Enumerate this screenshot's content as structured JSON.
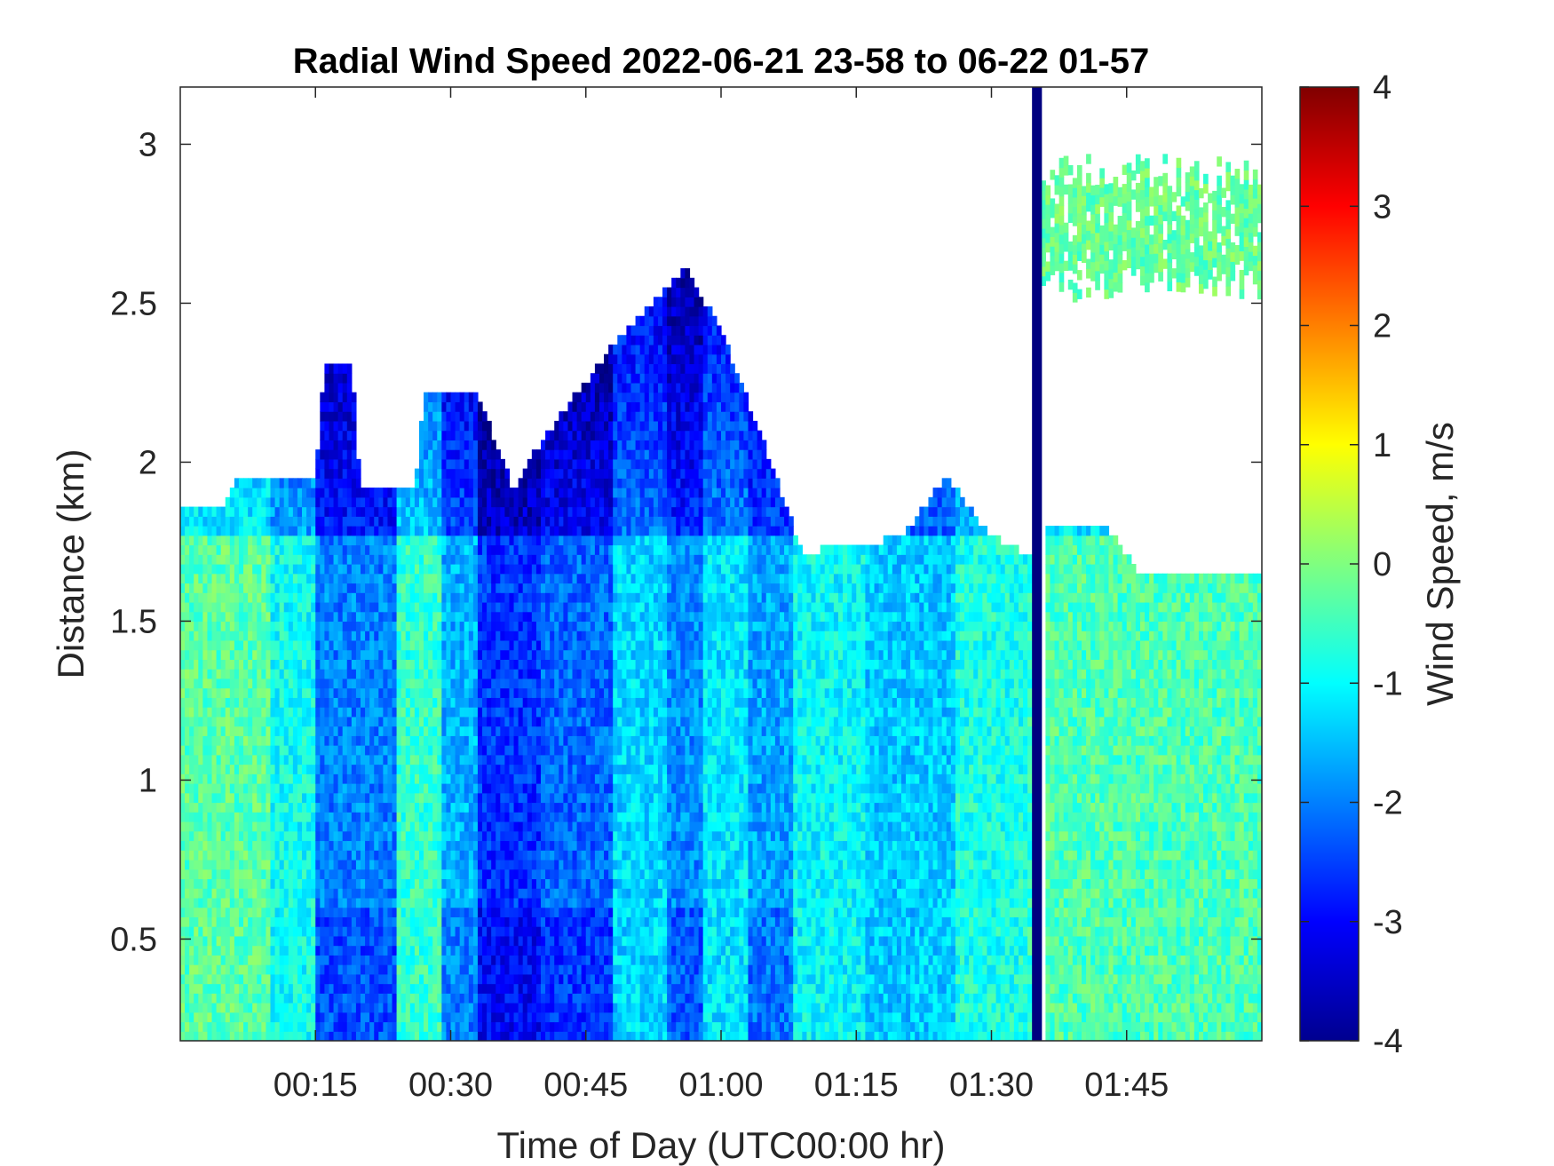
{
  "chart_data": {
    "type": "heatmap",
    "title": "Radial Wind Speed 2022-06-21 23-58 to 06-22 01-57",
    "xlabel": "Time of Day (UTC00:00 hr)",
    "ylabel": "Distance (km)",
    "colorbar_label": "Wind Speed, m/s",
    "colormap": "jet",
    "x_tick_labels": [
      "00:15",
      "00:30",
      "00:45",
      "01:00",
      "01:15",
      "01:30",
      "01:45"
    ],
    "x_ticks_minutes": [
      15,
      30,
      45,
      60,
      75,
      90,
      105
    ],
    "xlim_minutes": [
      0,
      120
    ],
    "y_ticks": [
      0.5,
      1,
      1.5,
      2,
      2.5,
      3
    ],
    "y_tick_labels": [
      "0.5",
      "1",
      "1.5",
      "2",
      "2.5",
      "3"
    ],
    "ylim": [
      0.18,
      3.18
    ],
    "colorbar_ticks": [
      4,
      3,
      2,
      1,
      0,
      -1,
      -2,
      -3,
      -4
    ],
    "colorbar_tick_labels": [
      "4",
      "3",
      "2",
      "1",
      "0",
      "-1",
      "-2",
      "-3",
      "-4"
    ],
    "clim": [
      -4,
      4
    ],
    "signal_top_km": [
      {
        "t": 0,
        "h": 1.86
      },
      {
        "t": 5,
        "h": 1.86
      },
      {
        "t": 6,
        "h": 1.94
      },
      {
        "t": 15,
        "h": 1.94
      },
      {
        "t": 16,
        "h": 2.3
      },
      {
        "t": 19,
        "h": 2.3
      },
      {
        "t": 20,
        "h": 1.9
      },
      {
        "t": 26,
        "h": 1.9
      },
      {
        "t": 27,
        "h": 2.2
      },
      {
        "t": 33,
        "h": 2.2
      },
      {
        "t": 37,
        "h": 1.9
      },
      {
        "t": 40,
        "h": 2.05
      },
      {
        "t": 48,
        "h": 2.35
      },
      {
        "t": 56,
        "h": 2.6
      },
      {
        "t": 60,
        "h": 2.4
      },
      {
        "t": 66,
        "h": 1.95
      },
      {
        "t": 69,
        "h": 1.7
      },
      {
        "t": 80,
        "h": 1.75
      },
      {
        "t": 85,
        "h": 1.95
      },
      {
        "t": 90,
        "h": 1.75
      },
      {
        "t": 94,
        "h": 1.7
      },
      {
        "t": 96,
        "h": 1.78
      },
      {
        "t": 103,
        "h": 1.78
      },
      {
        "t": 106,
        "h": 1.65
      },
      {
        "t": 120,
        "h": 1.65
      }
    ],
    "blind_band": {
      "t_start": 94.5,
      "t_end": 95.6,
      "value": -4
    },
    "approx_columns": [
      {
        "t_start": 0,
        "t_end": 10,
        "mean_speed": -0.3
      },
      {
        "t_start": 10,
        "t_end": 15,
        "mean_speed": -0.9
      },
      {
        "t_start": 15,
        "t_end": 24,
        "mean_speed": -2.0
      },
      {
        "t_start": 24,
        "t_end": 29,
        "mean_speed": -0.6
      },
      {
        "t_start": 29,
        "t_end": 33,
        "mean_speed": -1.6
      },
      {
        "t_start": 33,
        "t_end": 40,
        "mean_speed": -2.6
      },
      {
        "t_start": 40,
        "t_end": 48,
        "mean_speed": -2.2
      },
      {
        "t_start": 48,
        "t_end": 54,
        "mean_speed": -1.3
      },
      {
        "t_start": 54,
        "t_end": 58,
        "mean_speed": -1.9
      },
      {
        "t_start": 58,
        "t_end": 63,
        "mean_speed": -1.2
      },
      {
        "t_start": 63,
        "t_end": 68,
        "mean_speed": -1.7
      },
      {
        "t_start": 68,
        "t_end": 76,
        "mean_speed": -1.0
      },
      {
        "t_start": 76,
        "t_end": 86,
        "mean_speed": -1.4
      },
      {
        "t_start": 86,
        "t_end": 94,
        "mean_speed": -0.8
      },
      {
        "t_start": 96,
        "t_end": 120,
        "mean_speed": -0.4
      }
    ],
    "upper_patches": [
      {
        "t_start": 95.5,
        "t_end": 120,
        "h_low": 2.5,
        "h_high": 2.95,
        "mean_speed": -0.2
      }
    ]
  }
}
